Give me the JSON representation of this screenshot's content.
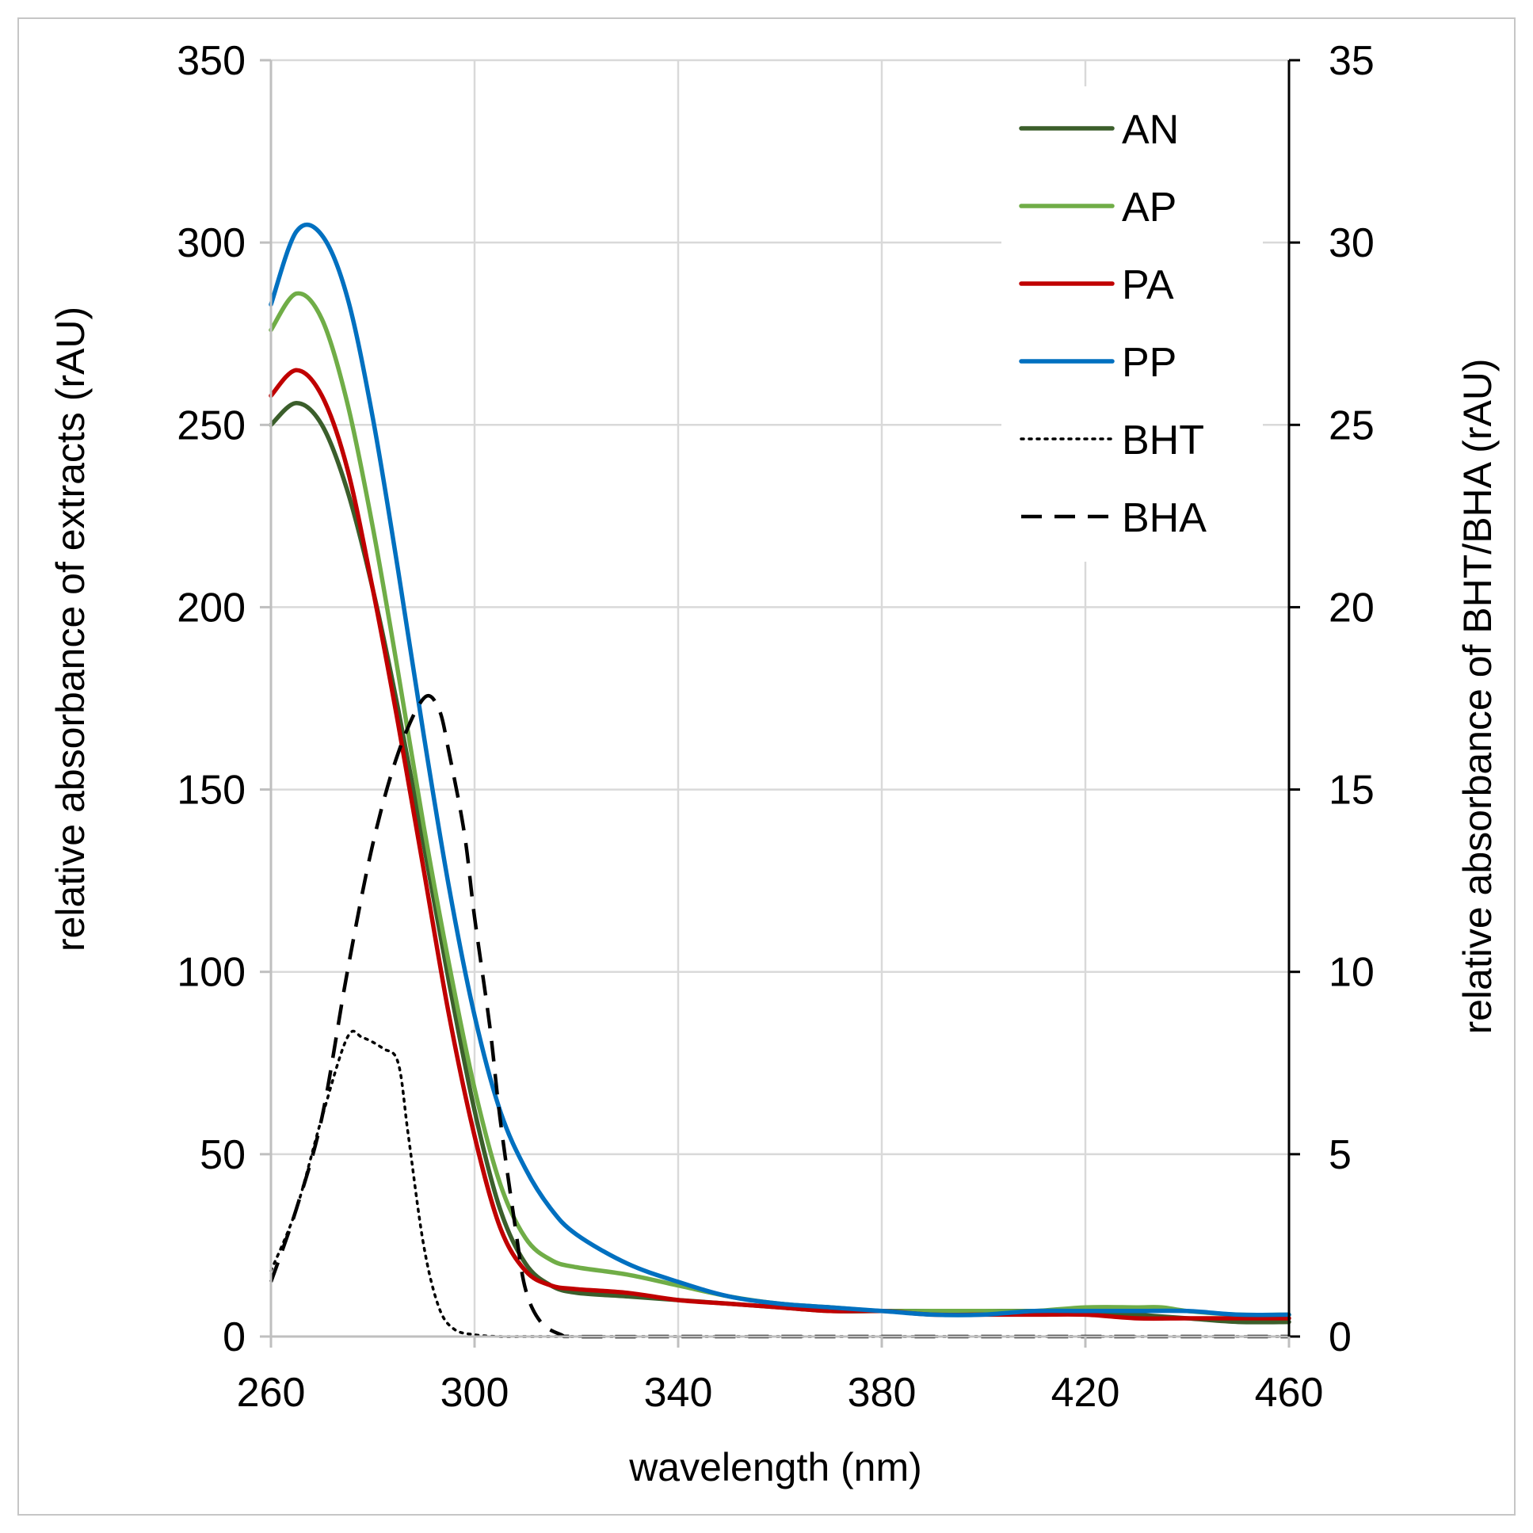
{
  "chart_data": {
    "type": "line",
    "title": "",
    "xlabel": "wavelength (nm)",
    "ylabel": "relative absorbance of extracts (rAU)",
    "y2label": "relative absorbance of BHT/BHA (rAU)",
    "xlim": [
      260,
      460
    ],
    "ylim": [
      0,
      350
    ],
    "y2lim": [
      0,
      35
    ],
    "x_ticks": [
      260,
      300,
      340,
      380,
      420,
      460
    ],
    "y_ticks": [
      0,
      50,
      100,
      150,
      200,
      250,
      300,
      350
    ],
    "y2_ticks": [
      0,
      5,
      10,
      15,
      20,
      25,
      30,
      35
    ],
    "grid": true,
    "legend_position": "top-right",
    "series": [
      {
        "name": "AN",
        "axis": "left",
        "color": "#3b5e2b",
        "style": "solid",
        "x": [
          260,
          265,
          270,
          275,
          280,
          285,
          290,
          295,
          300,
          305,
          310,
          315,
          320,
          330,
          340,
          350,
          360,
          370,
          380,
          390,
          400,
          410,
          420,
          430,
          440,
          450,
          460
        ],
        "y": [
          250,
          256,
          250,
          232,
          205,
          172,
          135,
          97,
          62,
          35,
          20,
          14,
          12,
          11,
          10,
          9,
          8,
          7,
          7,
          7,
          7,
          7,
          7,
          6,
          5,
          4,
          4
        ]
      },
      {
        "name": "AP",
        "axis": "left",
        "color": "#70ad47",
        "style": "solid",
        "x": [
          260,
          265,
          270,
          275,
          280,
          285,
          290,
          295,
          300,
          305,
          310,
          315,
          320,
          330,
          340,
          350,
          360,
          370,
          380,
          390,
          400,
          410,
          420,
          430,
          435,
          440,
          450,
          460
        ],
        "y": [
          276,
          286,
          279,
          256,
          222,
          182,
          140,
          102,
          68,
          42,
          27,
          21,
          19,
          17,
          14,
          11,
          9,
          8,
          7,
          7,
          7,
          7,
          8,
          8,
          8,
          7,
          6,
          6
        ]
      },
      {
        "name": "PA",
        "axis": "left",
        "color": "#c00000",
        "style": "solid",
        "x": [
          260,
          265,
          270,
          275,
          280,
          285,
          290,
          295,
          300,
          305,
          310,
          315,
          320,
          330,
          340,
          350,
          360,
          370,
          380,
          390,
          400,
          410,
          420,
          430,
          440,
          450,
          460
        ],
        "y": [
          258,
          265,
          258,
          238,
          205,
          168,
          128,
          88,
          55,
          30,
          18,
          14,
          13,
          12,
          10,
          9,
          8,
          7,
          7,
          6,
          6,
          6,
          6,
          5,
          5,
          5,
          5
        ]
      },
      {
        "name": "PP",
        "axis": "left",
        "color": "#0070c0",
        "style": "solid",
        "x": [
          260,
          265,
          270,
          275,
          280,
          285,
          290,
          295,
          300,
          305,
          310,
          315,
          320,
          330,
          340,
          350,
          360,
          370,
          380,
          390,
          400,
          410,
          420,
          430,
          440,
          450,
          460
        ],
        "y": [
          283,
          303,
          302,
          285,
          252,
          210,
          165,
          123,
          88,
          62,
          46,
          35,
          28,
          20,
          15,
          11,
          9,
          8,
          7,
          6,
          6,
          7,
          7,
          7,
          7,
          6,
          6
        ]
      },
      {
        "name": "BHT",
        "axis": "right",
        "color": "#000000",
        "style": "dotted",
        "x": [
          260,
          265,
          270,
          275,
          278,
          282,
          285,
          287,
          290,
          293,
          296,
          300,
          305,
          310,
          320,
          340,
          380,
          420,
          460
        ],
        "y": [
          1.8,
          3.5,
          6.0,
          8.2,
          8.2,
          7.9,
          7.5,
          5.5,
          2.5,
          0.8,
          0.2,
          0.05,
          0,
          0,
          0,
          0,
          0,
          0,
          0
        ]
      },
      {
        "name": "BHA",
        "axis": "right",
        "color": "#000000",
        "style": "dashed",
        "x": [
          260,
          265,
          270,
          275,
          280,
          285,
          290,
          293,
          295,
          298,
          300,
          303,
          305,
          308,
          310,
          313,
          317,
          320,
          340,
          380,
          420,
          460
        ],
        "y": [
          1.5,
          3.5,
          6.0,
          10.0,
          13.5,
          16.0,
          17.5,
          17.2,
          16.0,
          13.8,
          11.5,
          8.5,
          6.0,
          3.0,
          1.3,
          0.4,
          0.05,
          0,
          0,
          0,
          0,
          0
        ]
      }
    ]
  }
}
